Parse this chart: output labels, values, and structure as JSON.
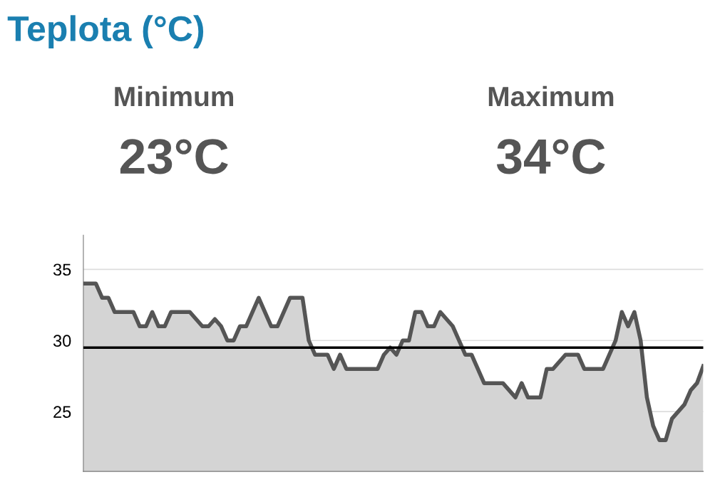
{
  "chart_data": {
    "type": "area",
    "title": "Teplota (°C)",
    "annotations": [
      "Minimum",
      "23°C",
      "Maximum",
      "34°C"
    ],
    "categories": [
      null,
      null,
      null,
      null,
      null,
      null,
      null,
      null,
      null,
      null,
      null,
      null,
      null,
      null,
      null,
      null,
      null,
      null,
      null,
      null,
      null,
      null,
      null,
      null,
      null,
      null,
      null,
      null,
      null,
      null,
      null,
      null,
      null,
      null,
      null,
      null,
      null,
      null,
      null,
      null,
      null,
      null,
      null,
      null,
      null,
      null,
      null,
      null,
      null,
      null,
      null,
      null,
      null,
      null,
      null,
      null,
      null,
      null,
      null,
      null,
      null,
      null,
      null,
      null,
      null,
      null,
      null,
      null,
      null,
      null,
      null,
      null,
      null,
      null,
      null,
      null,
      null,
      null,
      null,
      null,
      null,
      null,
      null,
      null,
      null,
      null,
      null,
      null,
      null,
      null,
      null,
      null,
      null,
      null,
      null,
      null,
      null,
      null,
      null,
      null
    ],
    "series": [
      {
        "color": "#555555",
        "values": [
          34,
          34,
          34,
          33,
          33,
          32,
          32,
          32,
          32,
          31,
          31,
          32,
          31,
          31,
          32,
          32,
          32,
          32,
          31.5,
          31,
          31,
          31.5,
          31,
          30,
          30,
          31,
          31,
          32,
          33,
          32,
          31,
          31,
          32,
          33,
          33,
          33,
          30,
          29,
          29,
          29,
          28,
          29,
          28,
          28,
          28,
          28,
          28,
          28,
          29,
          29.5,
          29,
          30,
          30,
          32,
          32,
          31,
          31,
          32,
          31.5,
          31,
          30,
          29,
          29,
          28,
          27,
          27,
          27,
          27,
          26.5,
          26,
          27,
          26,
          26,
          26,
          28,
          28,
          28.5,
          29,
          29,
          29,
          28,
          28,
          28,
          28,
          29,
          30,
          32,
          31,
          32,
          30,
          26,
          24,
          23,
          23,
          24.5,
          25,
          25.5,
          26.5,
          27,
          28.2
        ]
      }
    ],
    "ylim": [
      20.8,
      37.4
    ],
    "yticks": [
      25,
      30,
      35
    ],
    "grid": "y",
    "ref_lines": [
      {
        "axis": "y",
        "value": 29.5,
        "color": "#000000"
      }
    ]
  }
}
